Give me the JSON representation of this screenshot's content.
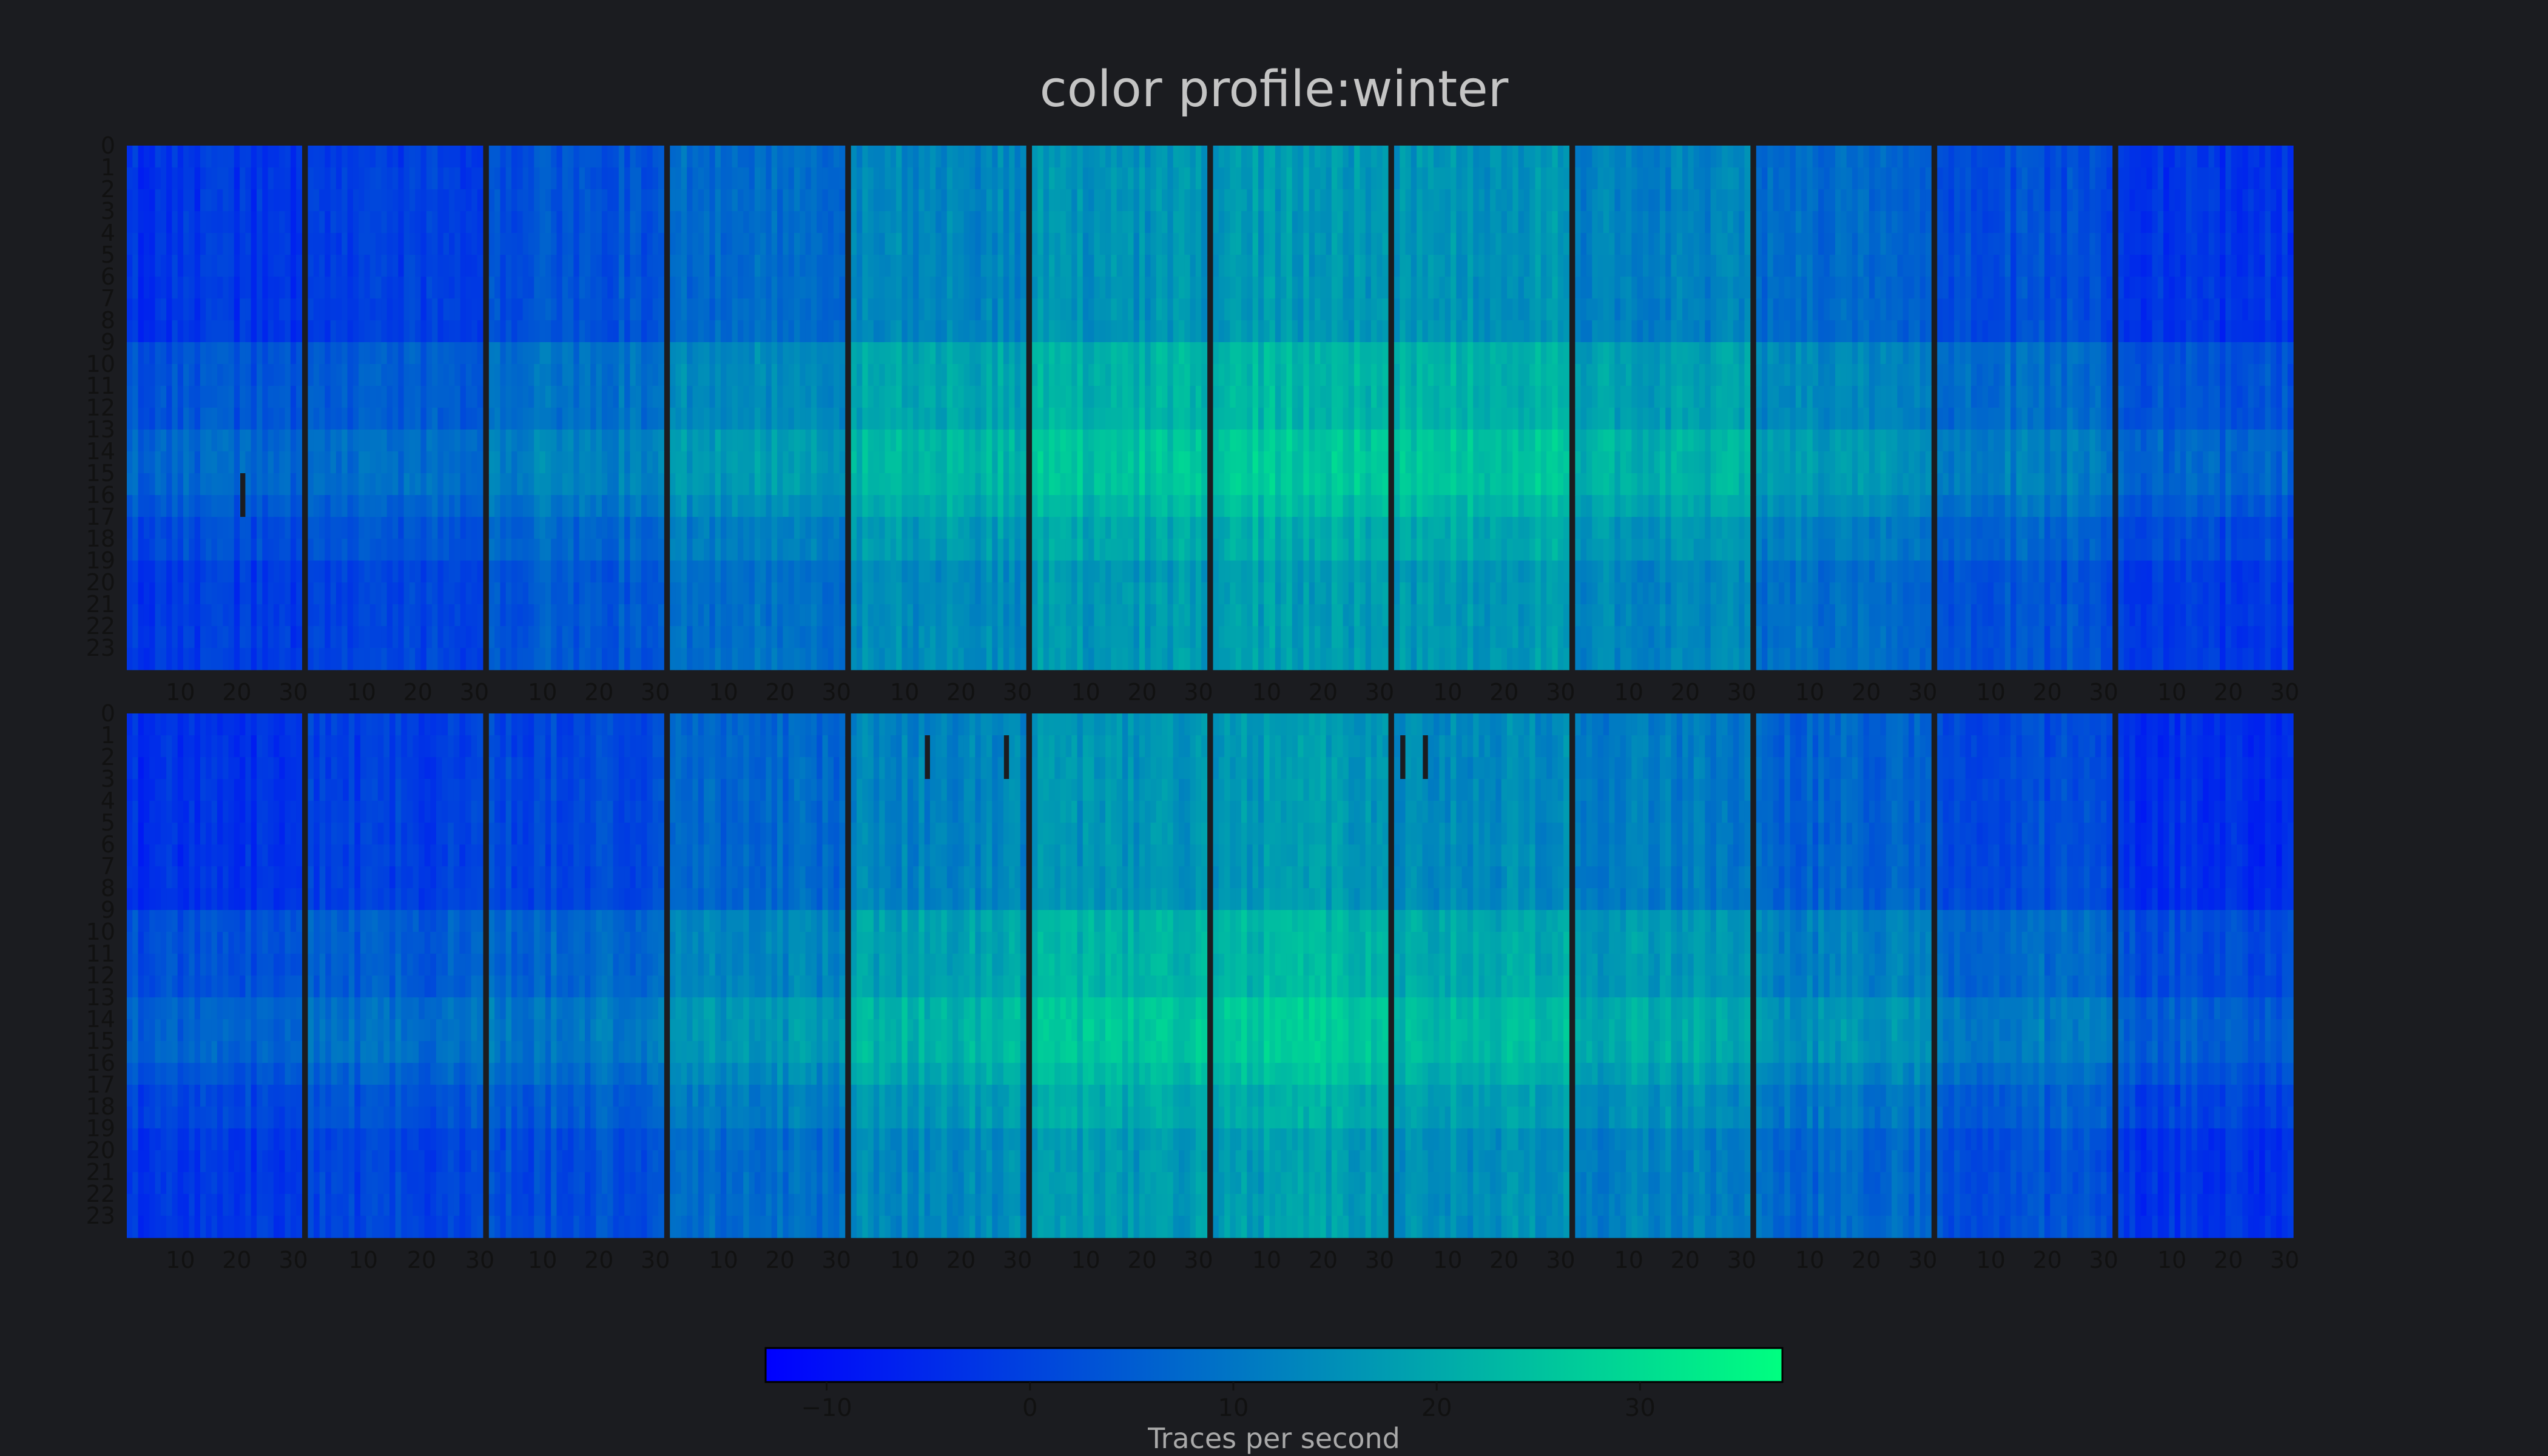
{
  "chart_data": {
    "type": "heatmap",
    "title": "color profile:winter",
    "colorbar": {
      "label": "Traces per second",
      "range": [
        -13,
        37
      ],
      "ticks": [
        -10,
        0,
        10,
        20,
        30
      ],
      "tick_labels": [
        "−10",
        "0",
        "10",
        "20",
        "30"
      ],
      "colors": [
        "#0000ff",
        "#00ff80"
      ]
    },
    "y_ticks": [
      "0",
      "1",
      "2",
      "3",
      "4",
      "5",
      "6",
      "7",
      "8",
      "9",
      "10",
      "11",
      "12",
      "13",
      "14",
      "15",
      "16",
      "17",
      "18",
      "19",
      "20",
      "21",
      "22",
      "23"
    ],
    "x_ticks": [
      "10",
      "20",
      "30"
    ],
    "rows": [
      {
        "months": [
          {
            "days": 31,
            "base": -3
          },
          {
            "days": 31,
            "base": -1
          },
          {
            "days": 31,
            "base": 3
          },
          {
            "days": 31,
            "base": 8
          },
          {
            "days": 31,
            "base": 13
          },
          {
            "days": 31,
            "base": 16
          },
          {
            "days": 31,
            "base": 17
          },
          {
            "days": 31,
            "base": 16
          },
          {
            "days": 31,
            "base": 12
          },
          {
            "days": 31,
            "base": 7
          },
          {
            "days": 31,
            "base": 2
          },
          {
            "days": 31,
            "base": -3
          }
        ],
        "gaps": [
          {
            "month": 0,
            "day": 20,
            "hours": [
              15,
              16
            ]
          }
        ]
      },
      {
        "months": [
          {
            "days": 31,
            "base": -4
          },
          {
            "days": 30,
            "base": -1
          },
          {
            "days": 31,
            "base": 1
          },
          {
            "days": 31,
            "base": 7
          },
          {
            "days": 31,
            "base": 13
          },
          {
            "days": 31,
            "base": 16
          },
          {
            "days": 31,
            "base": 17
          },
          {
            "days": 31,
            "base": 14
          },
          {
            "days": 31,
            "base": 11
          },
          {
            "days": 31,
            "base": 6
          },
          {
            "days": 31,
            "base": 2
          },
          {
            "days": 31,
            "base": -4
          }
        ],
        "gaps": [
          {
            "month": 4,
            "day": 13,
            "hours": [
              1,
              2
            ]
          },
          {
            "month": 4,
            "day": 27,
            "hours": [
              1,
              2
            ]
          },
          {
            "month": 7,
            "day": 1,
            "hours": [
              1,
              2
            ]
          },
          {
            "month": 7,
            "day": 5,
            "hours": [
              1,
              2
            ]
          }
        ]
      }
    ]
  }
}
